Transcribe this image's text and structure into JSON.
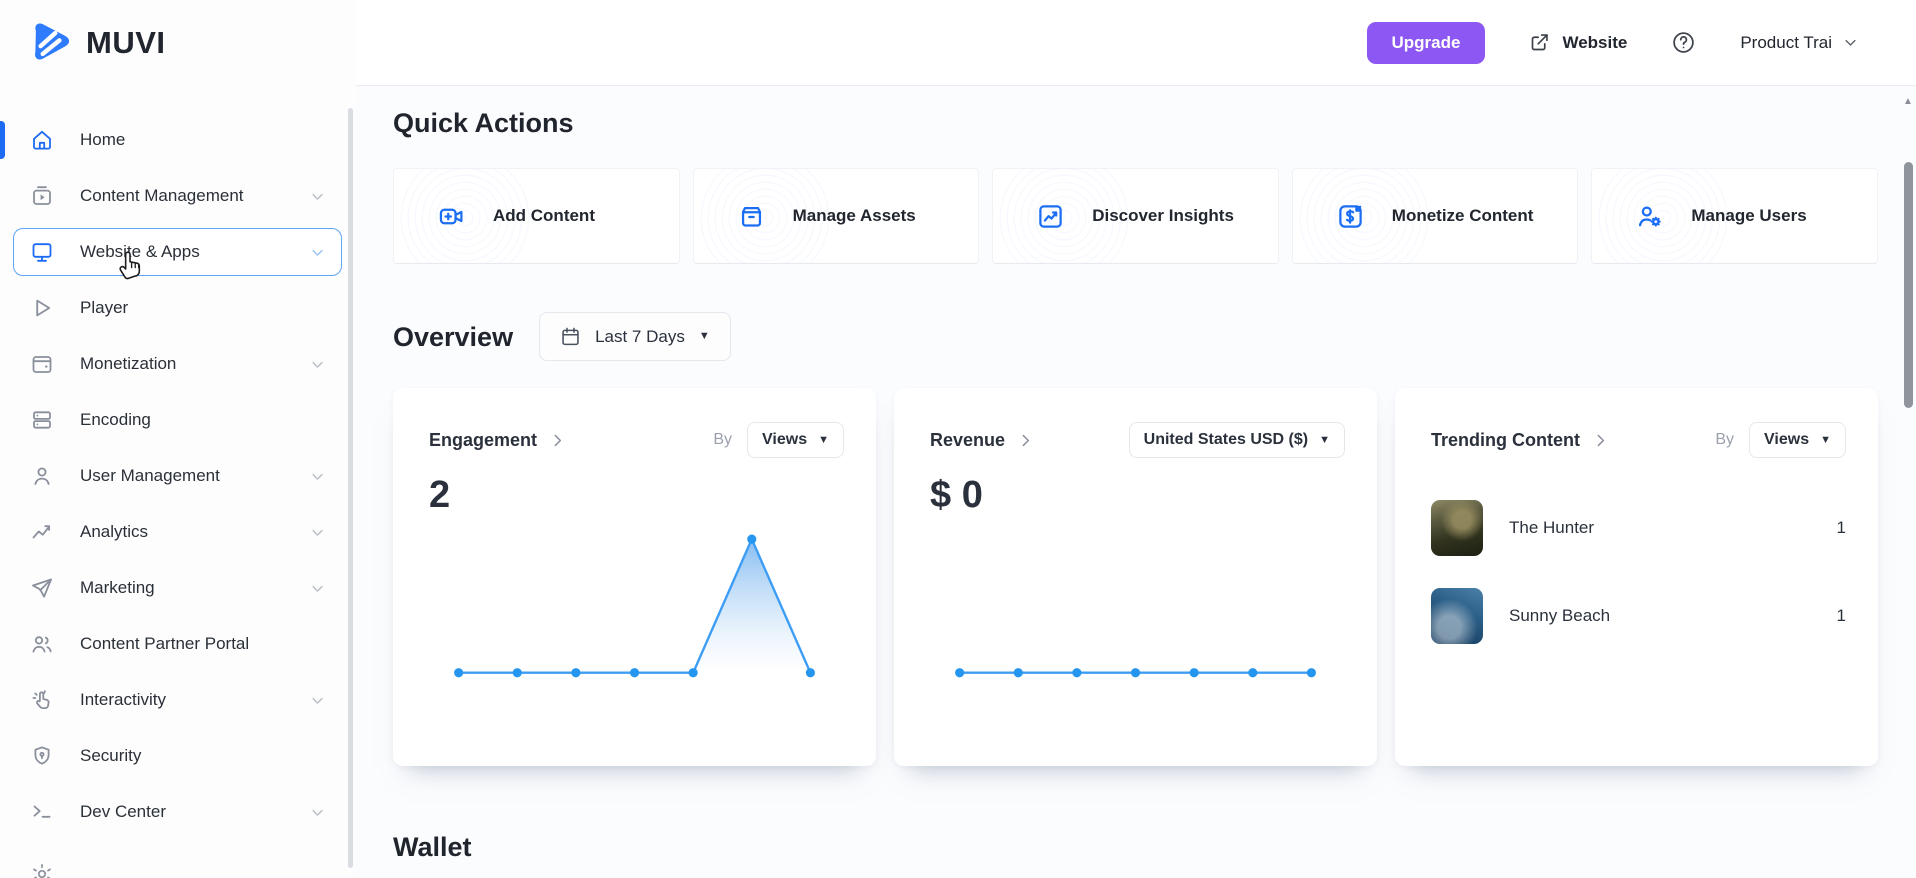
{
  "brand": {
    "name": "MUVI"
  },
  "topbar": {
    "upgrade_label": "Upgrade",
    "website_label": "Website",
    "account_label": "Product Trai"
  },
  "sidebar": {
    "items": [
      {
        "label": "Home",
        "icon": "home",
        "blue": true,
        "active": true,
        "expandable": false
      },
      {
        "label": "Content Management",
        "icon": "content-management",
        "blue": false,
        "expandable": true
      },
      {
        "label": "Website & Apps",
        "icon": "website-apps",
        "blue": true,
        "selected": true,
        "expandable": true
      },
      {
        "label": "Player",
        "icon": "player",
        "blue": false,
        "expandable": false
      },
      {
        "label": "Monetization",
        "icon": "monetization",
        "blue": false,
        "expandable": true
      },
      {
        "label": "Encoding",
        "icon": "encoding",
        "blue": false,
        "expandable": false
      },
      {
        "label": "User Management",
        "icon": "user-management",
        "blue": false,
        "expandable": true
      },
      {
        "label": "Analytics",
        "icon": "analytics",
        "blue": false,
        "expandable": true
      },
      {
        "label": "Marketing",
        "icon": "marketing",
        "blue": false,
        "expandable": true
      },
      {
        "label": "Content Partner Portal",
        "icon": "content-partner-portal",
        "blue": false,
        "expandable": false
      },
      {
        "label": "Interactivity",
        "icon": "interactivity",
        "blue": false,
        "expandable": true
      },
      {
        "label": "Security",
        "icon": "security",
        "blue": false,
        "expandable": false
      },
      {
        "label": "Dev Center",
        "icon": "dev-center",
        "blue": false,
        "expandable": true
      }
    ]
  },
  "main": {
    "quick_actions_title": "Quick Actions",
    "quick_actions": [
      {
        "label": "Add Content",
        "icon": "add-content"
      },
      {
        "label": "Manage Assets",
        "icon": "manage-assets"
      },
      {
        "label": "Discover Insights",
        "icon": "discover-insights"
      },
      {
        "label": "Monetize Content",
        "icon": "monetize-content"
      },
      {
        "label": "Manage Users",
        "icon": "manage-users"
      }
    ],
    "overview_title": "Overview",
    "date_filter": "Last 7 Days",
    "wallet_title": "Wallet",
    "cards": {
      "engagement": {
        "title": "Engagement",
        "by_label": "By",
        "metric": "Views",
        "value": "2"
      },
      "revenue": {
        "title": "Revenue",
        "currency": "United States USD ($)",
        "value": "$ 0"
      },
      "trending": {
        "title": "Trending Content",
        "by_label": "By",
        "metric": "Views",
        "items": [
          {
            "title": "The Hunter",
            "count": "1",
            "thumb": "dark-soldier"
          },
          {
            "title": "Sunny Beach",
            "count": "1",
            "thumb": "blue-ocean"
          }
        ]
      }
    }
  },
  "colors": {
    "accent_blue": "#1C6BF2",
    "accent_purple": "#8C57F2",
    "chart_line": "#3D9DF5",
    "chart_point": "#2596F0",
    "selected_border": "#5FA5F8"
  },
  "chart_data": [
    {
      "type": "line",
      "name": "Engagement by Views (Last 7 Days)",
      "x": [
        1,
        2,
        3,
        4,
        5,
        6,
        7
      ],
      "values": [
        0,
        0,
        0,
        0,
        0,
        2,
        0
      ],
      "ylim": [
        0,
        2
      ],
      "grid": false,
      "axes_hidden": true,
      "line_color": "#3D9DF5",
      "point_color": "#2596F0",
      "area_fill": "gradient"
    },
    {
      "type": "line",
      "name": "Revenue in United States USD (Last 7 Days)",
      "x": [
        1,
        2,
        3,
        4,
        5,
        6,
        7
      ],
      "values": [
        0,
        0,
        0,
        0,
        0,
        0,
        0
      ],
      "ylim": [
        0,
        2
      ],
      "grid": false,
      "axes_hidden": true,
      "line_color": "#3D9DF5",
      "point_color": "#2596F0"
    }
  ]
}
